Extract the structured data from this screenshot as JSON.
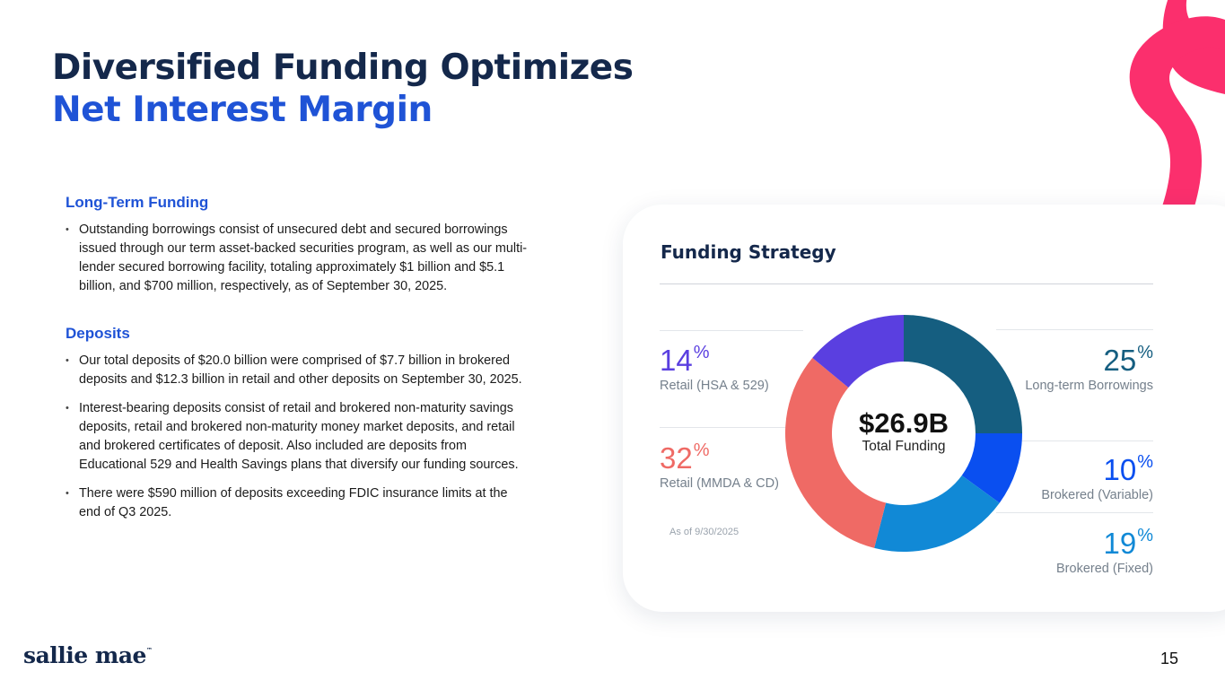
{
  "title": {
    "line1": "Diversified Funding Optimizes",
    "line2": "Net Interest Margin"
  },
  "sections": {
    "long_term": {
      "heading": "Long-Term Funding",
      "bullets": [
        "Outstanding borrowings consist of unsecured debt and secured borrowings issued through our term asset-backed securities program, as well as our multi-lender secured borrowing facility, totaling approximately $1 billion and $5.1 billion, and $700 million, respectively, as of September 30, 2025."
      ]
    },
    "deposits": {
      "heading": "Deposits",
      "bullets": [
        "Our total deposits of $20.0 billion were comprised of $7.7 billion in brokered deposits and $12.3 billion in retail and other deposits on September 30, 2025.",
        "Interest-bearing deposits consist of retail and brokered non-maturity savings deposits, retail and brokered non-maturity money market deposits, and retail and brokered certificates of deposit. Also included are deposits from Educational 529 and Health Savings plans that diversify our funding sources.",
        "There were $590 million of deposits exceeding FDIC insurance limits at the end of Q3 2025."
      ]
    }
  },
  "funding": {
    "title": "Funding Strategy",
    "as_of": "As of 9/30/2025",
    "center_value": "$26.9B",
    "center_label": "Total Funding",
    "pct_sign": "%"
  },
  "chart_data": {
    "type": "pie",
    "categories": [
      "Long-term Borrowings",
      "Brokered (Variable)",
      "Brokered (Fixed)",
      "Retail (MMDA & CD)",
      "Retail (HSA & 529)"
    ],
    "values": [
      25,
      10,
      19,
      32,
      14
    ],
    "colors": [
      "#155e80",
      "#0a4ff0",
      "#1189d6",
      "#ef6a65",
      "#5a3fe0"
    ],
    "total_label": "$26.9B",
    "total_caption": "Total Funding"
  },
  "stats": {
    "ltb": {
      "value": "25",
      "label": "Long-term Borrowings",
      "color": "#155e80"
    },
    "bv": {
      "value": "10",
      "label": "Brokered (Variable)",
      "color": "#0a4ff0"
    },
    "bf": {
      "value": "19",
      "label": "Brokered (Fixed)",
      "color": "#1189d6"
    },
    "rm": {
      "value": "32",
      "label": "Retail (MMDA & CD)",
      "color": "#ef6a65"
    },
    "rh": {
      "value": "14",
      "label": "Retail (HSA & 529)",
      "color": "#5a3fe0"
    }
  },
  "footer": {
    "logo_text": "sallie mae",
    "logo_tm": "™",
    "page_number": "15"
  }
}
